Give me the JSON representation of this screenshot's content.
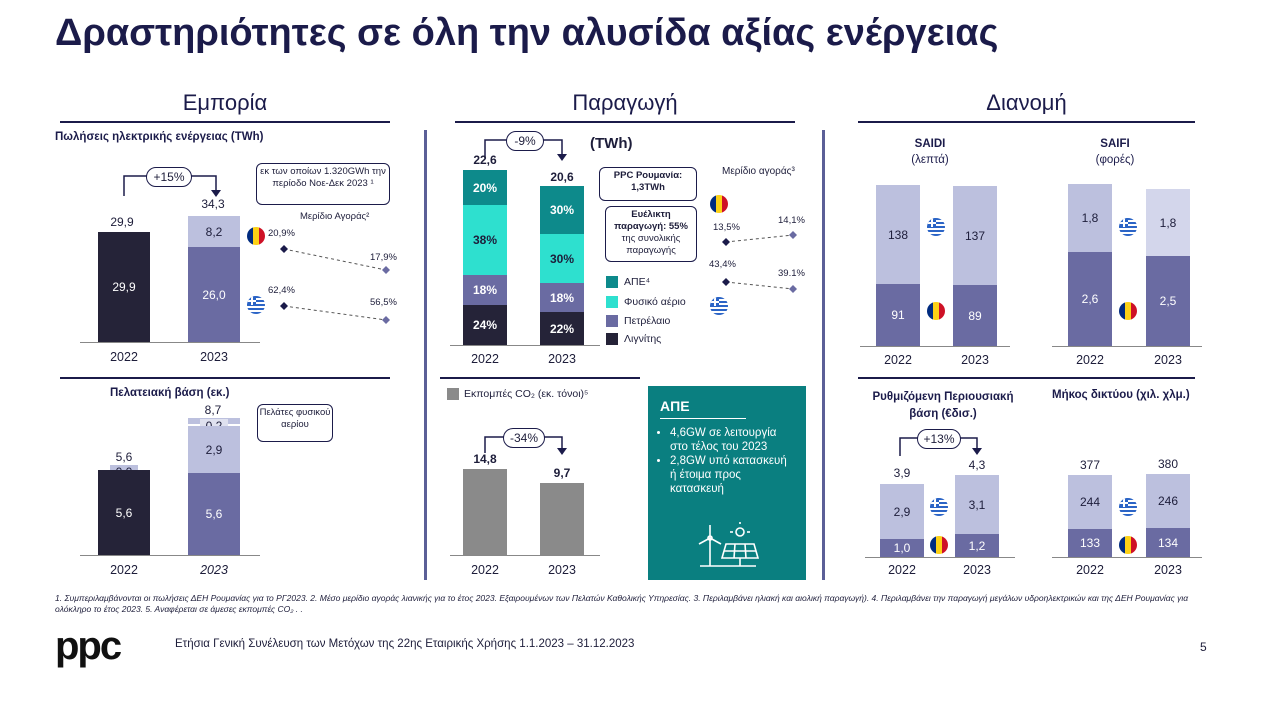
{
  "title": "Δραστηριότητες σε όλη την αλυσίδα αξίας ενέργειας",
  "sections": {
    "trade": "Εμπορία",
    "production": "Παραγωγή",
    "distribution": "Διανομή"
  },
  "years": [
    "2022",
    "2023"
  ],
  "sales": {
    "title": "Πωλήσεις ηλεκτρικής ενέργειας (TWh)",
    "change": "+15%",
    "note": "εκ των οποίων 1.320GWh την περίοδο Νοε-Δεκ 2023 ¹",
    "share_label": "Μερίδιο Αγοράς²",
    "ro_share": [
      "20,9%",
      "17,9%"
    ],
    "gr_share": [
      "62,4%",
      "56,5%"
    ]
  },
  "customers": {
    "title": "Πελατειακή βάση (εκ.)",
    "note": "Πελάτες φυσικού αερίου",
    "year_2023": "2023"
  },
  "generation": {
    "change": "-9%",
    "unit": "(TWh)",
    "ppc_ro": "PPC Ρουμανία: 1,3TWh",
    "flex": "Ευέλικτη παραγωγή: 55% της συνολικής παραγωγής",
    "flex_bold": "Ευέλικτη παραγωγή: 55%",
    "flex_rest": "της συνολικής παραγωγής",
    "share_label": "Μερίδιο αγοράς³",
    "ro_share": [
      "13,5%",
      "14,1%"
    ],
    "gr_share": [
      "43,4%",
      "39.1%"
    ],
    "legend": [
      "ΑΠΕ⁴",
      "Φυσικό αέριο",
      "Πετρέλαιο",
      "Λιγνίτης"
    ]
  },
  "emissions": {
    "title": "Εκπομπές CO₂ (εκ. τόνοι)⁵",
    "change": "-34%"
  },
  "res_box": {
    "title": "ΑΠΕ",
    "bullets": [
      "4,6GW σε λειτουργία στο τέλος του 2023",
      "2,8GW υπό κατασκευή ή έτοιμα προς κατασκευή"
    ]
  },
  "saidi": {
    "title": "SAIDI",
    "unit": "(λεπτά)"
  },
  "saifi": {
    "title": "SAIFI",
    "unit": "(φορές)"
  },
  "rab": {
    "title": "Ρυθμιζόμενη Περιουσιακή βάση (€δισ.)",
    "change": "+13%"
  },
  "network": {
    "title": "Μήκος δικτύου (χιλ. χλμ.)"
  },
  "footnote": "1. Συμπεριλαμβάνονται οι πωλήσεις ΔΕΗ Ρουμανίας για το ΡΓ2023. 2. Μέσο μερίδιο αγοράς λιανικής για το έτος 2023. Εξαιρουμένων των Πελατών Καθολικής Υπηρεσίας. 3. Περιλαμβάνει ηλιακή και αιολική παραγωγή). 4. Περιλαμβάνει την παραγωγή μεγάλων υδροηλεκτρικών και της ΔΕΗ  Ρουμανίας για ολόκληρο το έτος 2023. 5. Αναφέρεται σε  άμεσες εκπομπές CO₂ . .",
  "footer": {
    "logo": "ppc",
    "text": "Ετήσια Γενική Συνέλευση των Μετόχων της 22ης Εταιρικής Χρήσης 1.1.2023 – 31.12.2023",
    "page": "5"
  },
  "colors": {
    "navy": "#1b1b4a",
    "dark": "#252338",
    "purple": "#6a6ba2",
    "light": "#bcc0de",
    "teal": "#0d8a8b",
    "cyan": "#2ee0cf",
    "gray": "#8a8a8a",
    "res_bg": "#0a7f80"
  },
  "chart_data": [
    {
      "type": "bar",
      "title": "Πωλήσεις ηλεκτρικής ενέργειας (TWh)",
      "categories": [
        "2022",
        "2023"
      ],
      "totals": [
        "29,9",
        "34,3"
      ],
      "series": [
        {
          "values": [
            29.9,
            26.0
          ],
          "labels": [
            "29,9",
            "26,0"
          ]
        },
        {
          "values": [
            0,
            8.2
          ],
          "labels": [
            "",
            "8,2"
          ]
        }
      ]
    },
    {
      "type": "bar",
      "title": "Πελατειακή βάση (εκ.)",
      "categories": [
        "2022",
        "2023"
      ],
      "totals": [
        "5,6",
        "8,7"
      ],
      "series": [
        {
          "values": [
            5.6,
            5.6
          ],
          "labels": [
            "5,6",
            "5,6"
          ]
        },
        {
          "values": [
            0,
            2.9
          ],
          "labels": [
            "",
            "2,9"
          ]
        },
        {
          "values": [
            0.0,
            0.2
          ],
          "labels": [
            "0,0",
            "0,2"
          ]
        }
      ]
    },
    {
      "type": "bar",
      "title": "(TWh)",
      "categories": [
        "2022",
        "2023"
      ],
      "totals": [
        "22,6",
        "20,6"
      ],
      "series": [
        {
          "name": "Λιγνίτης",
          "values": [
            24,
            22
          ],
          "labels": [
            "24%",
            "22%"
          ]
        },
        {
          "name": "Πετρέλαιο",
          "values": [
            18,
            18
          ],
          "labels": [
            "18%",
            "18%"
          ]
        },
        {
          "name": "Φυσικό αέριο",
          "values": [
            38,
            30
          ],
          "labels": [
            "38%",
            "30%"
          ]
        },
        {
          "name": "ΑΠΕ⁴",
          "values": [
            20,
            30
          ],
          "labels": [
            "20%",
            "30%"
          ]
        }
      ]
    },
    {
      "type": "bar",
      "title": "Εκπομπές CO₂ (εκ. τόνοι)⁵",
      "categories": [
        "2022",
        "2023"
      ],
      "values": [
        14.8,
        9.7
      ],
      "labels": [
        "14,8",
        "9,7"
      ]
    },
    {
      "type": "bar",
      "title": "SAIDI (λεπτά)",
      "categories": [
        "2022",
        "2023"
      ],
      "series": [
        {
          "values": [
            91,
            89
          ],
          "labels": [
            "91",
            "89"
          ]
        },
        {
          "values": [
            138,
            137
          ],
          "labels": [
            "138",
            "137"
          ]
        }
      ]
    },
    {
      "type": "bar",
      "title": "SAIFI (φορές)",
      "categories": [
        "2022",
        "2023"
      ],
      "series": [
        {
          "values": [
            2.6,
            2.5
          ],
          "labels": [
            "2,6",
            "2,5"
          ]
        },
        {
          "values": [
            1.8,
            1.8
          ],
          "labels": [
            "1,8",
            "1,8"
          ]
        }
      ]
    },
    {
      "type": "bar",
      "title": "Ρυθμιζόμενη Περιουσιακή βάση (€δισ.)",
      "categories": [
        "2022",
        "2023"
      ],
      "totals": [
        "3,9",
        "4,3"
      ],
      "series": [
        {
          "values": [
            1.0,
            1.2
          ],
          "labels": [
            "1,0",
            "1,2"
          ]
        },
        {
          "values": [
            2.9,
            3.1
          ],
          "labels": [
            "2,9",
            "3,1"
          ]
        }
      ]
    },
    {
      "type": "bar",
      "title": "Μήκος δικτύου (χιλ. χλμ.)",
      "categories": [
        "2022",
        "2023"
      ],
      "totals": [
        "377",
        "380"
      ],
      "series": [
        {
          "values": [
            133,
            134
          ],
          "labels": [
            "133",
            "134"
          ]
        },
        {
          "values": [
            244,
            246
          ],
          "labels": [
            "244",
            "246"
          ]
        }
      ]
    }
  ]
}
